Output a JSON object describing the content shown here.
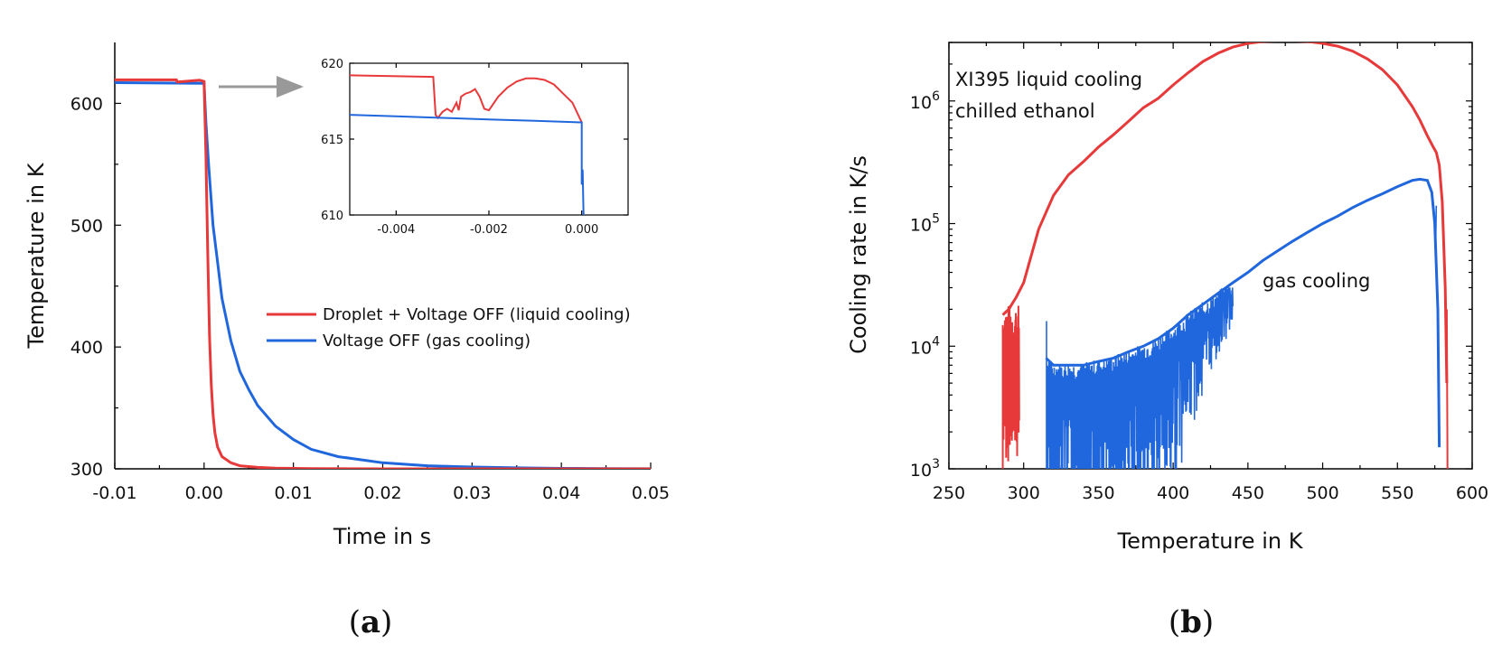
{
  "colors": {
    "liquid": "#e8393a",
    "gas": "#2067dd",
    "arrow": "#999999"
  },
  "chart_data": [
    {
      "type": "line",
      "panel": "a",
      "caption_open": "(",
      "caption_letter": "a",
      "caption_close": ")",
      "xlabel": "Time in s",
      "ylabel": "Temperature in K",
      "xlim": [
        -0.01,
        0.05
      ],
      "ylim": [
        300,
        650
      ],
      "xticks": [
        "-0.01",
        "0.00",
        "0.01",
        "0.02",
        "0.03",
        "0.04",
        "0.05"
      ],
      "yticks": [
        "300",
        "400",
        "500",
        "600"
      ],
      "series": [
        {
          "name": "Droplet + Voltage OFF (liquid cooling)",
          "x": [
            -0.01,
            -0.0031,
            -0.003,
            -0.0005,
            0.0,
            0.0002,
            0.0004,
            0.0006,
            0.0008,
            0.001,
            0.0012,
            0.0015,
            0.002,
            0.003,
            0.004,
            0.006,
            0.008,
            0.012,
            0.02,
            0.05
          ],
          "y": [
            619.3,
            619.3,
            617.5,
            619.0,
            618.0,
            560,
            480,
            410,
            370,
            345,
            330,
            318,
            310,
            305,
            302.5,
            301.2,
            300.6,
            300.2,
            300.0,
            300.0
          ]
        },
        {
          "name": "Voltage OFF (gas cooling)",
          "x": [
            -0.01,
            0.0,
            0.0002,
            0.0005,
            0.001,
            0.0015,
            0.002,
            0.003,
            0.004,
            0.005,
            0.006,
            0.008,
            0.01,
            0.012,
            0.015,
            0.02,
            0.025,
            0.03,
            0.035,
            0.04,
            0.045,
            0.05
          ],
          "y": [
            617.0,
            616.5,
            585,
            550,
            500,
            470,
            440,
            405,
            380,
            365,
            352,
            335,
            324,
            316,
            310,
            305,
            302.5,
            301.5,
            300.8,
            300.4,
            300.2,
            300.1
          ]
        }
      ],
      "legend_position": "center-right",
      "inset": {
        "xlim": [
          -0.005,
          0.001
        ],
        "ylim": [
          610,
          620
        ],
        "xticks": [
          "-0.004",
          "-0.002",
          "0.000"
        ],
        "yticks": [
          "610",
          "615",
          "620"
        ],
        "series": [
          {
            "name": "Droplet + Voltage OFF (liquid cooling)",
            "x": [
              -0.005,
              -0.0032,
              -0.00315,
              -0.0031,
              -0.003,
              -0.0029,
              -0.0028,
              -0.0027,
              -0.00265,
              -0.0026,
              -0.0025,
              -0.0024,
              -0.0023,
              -0.0022,
              -0.0021,
              -0.002,
              -0.0018,
              -0.0016,
              -0.0014,
              -0.0012,
              -0.001,
              -0.0008,
              -0.0006,
              -0.0004,
              -0.0002,
              0.0
            ],
            "y": [
              619.2,
              619.1,
              616.6,
              616.4,
              616.8,
              617.0,
              616.8,
              617.4,
              616.9,
              617.8,
              618.0,
              618.1,
              618.3,
              617.8,
              617.0,
              616.9,
              617.8,
              618.4,
              618.8,
              619.0,
              619.0,
              618.9,
              618.6,
              618.0,
              617.4,
              616.1
            ]
          },
          {
            "name": "Voltage OFF (gas cooling)",
            "x": [
              -0.005,
              -0.004,
              -0.003,
              -0.002,
              -0.001,
              0.0,
              0.0,
              2e-05,
              4e-05
            ],
            "y": [
              616.6,
              616.5,
              616.4,
              616.3,
              616.2,
              616.1,
              612.0,
              613.0,
              610.0
            ]
          }
        ]
      }
    },
    {
      "type": "line",
      "panel": "b",
      "caption_open": "(",
      "caption_letter": "b",
      "caption_close": ")",
      "xlabel": "Temperature in K",
      "ylabel": "Cooling rate in K/s",
      "yscale": "log",
      "xlim": [
        250,
        600
      ],
      "ylim": [
        1000,
        3000000
      ],
      "xticks": [
        "250",
        "300",
        "350",
        "400",
        "450",
        "500",
        "550",
        "600"
      ],
      "yticks": [
        {
          "base": "10",
          "exp": "3"
        },
        {
          "base": "10",
          "exp": "4"
        },
        {
          "base": "10",
          "exp": "5"
        },
        {
          "base": "10",
          "exp": "6"
        }
      ],
      "annotations": [
        "XI395 liquid cooling",
        "chilled ethanol",
        "gas cooling"
      ],
      "series": [
        {
          "name": "XI395 liquid cooling chilled ethanol",
          "x": [
            286,
            290,
            295,
            300,
            310,
            320,
            330,
            340,
            350,
            360,
            370,
            380,
            390,
            400,
            410,
            420,
            430,
            440,
            450,
            460,
            470,
            480,
            490,
            500,
            510,
            520,
            530,
            540,
            550,
            560,
            565,
            570,
            574,
            576,
            578,
            580,
            582,
            583
          ],
          "y": [
            18000,
            20000,
            25000,
            33000,
            90000,
            170000,
            250000,
            320000,
            420000,
            530000,
            680000,
            880000,
            1050000,
            1350000,
            1700000,
            2100000,
            2450000,
            2750000,
            2950000,
            3050000,
            3080000,
            3080000,
            3050000,
            2950000,
            2800000,
            2550000,
            2200000,
            1800000,
            1350000,
            900000,
            700000,
            520000,
            420000,
            380000,
            300000,
            150000,
            30000,
            5000
          ]
        },
        {
          "name": "gas cooling",
          "x": [
            315,
            320,
            330,
            340,
            350,
            360,
            370,
            380,
            390,
            400,
            410,
            420,
            430,
            440,
            450,
            460,
            470,
            480,
            490,
            500,
            510,
            520,
            530,
            540,
            550,
            560,
            565,
            570,
            573,
            575,
            577,
            578
          ],
          "y": [
            8000,
            7000,
            7000,
            7000,
            7500,
            8000,
            9000,
            10000,
            11500,
            14000,
            18000,
            22000,
            27000,
            33000,
            40000,
            50000,
            60000,
            72000,
            85000,
            100000,
            115000,
            135000,
            155000,
            175000,
            200000,
            225000,
            230000,
            225000,
            180000,
            100000,
            20000,
            1500
          ]
        }
      ]
    }
  ]
}
